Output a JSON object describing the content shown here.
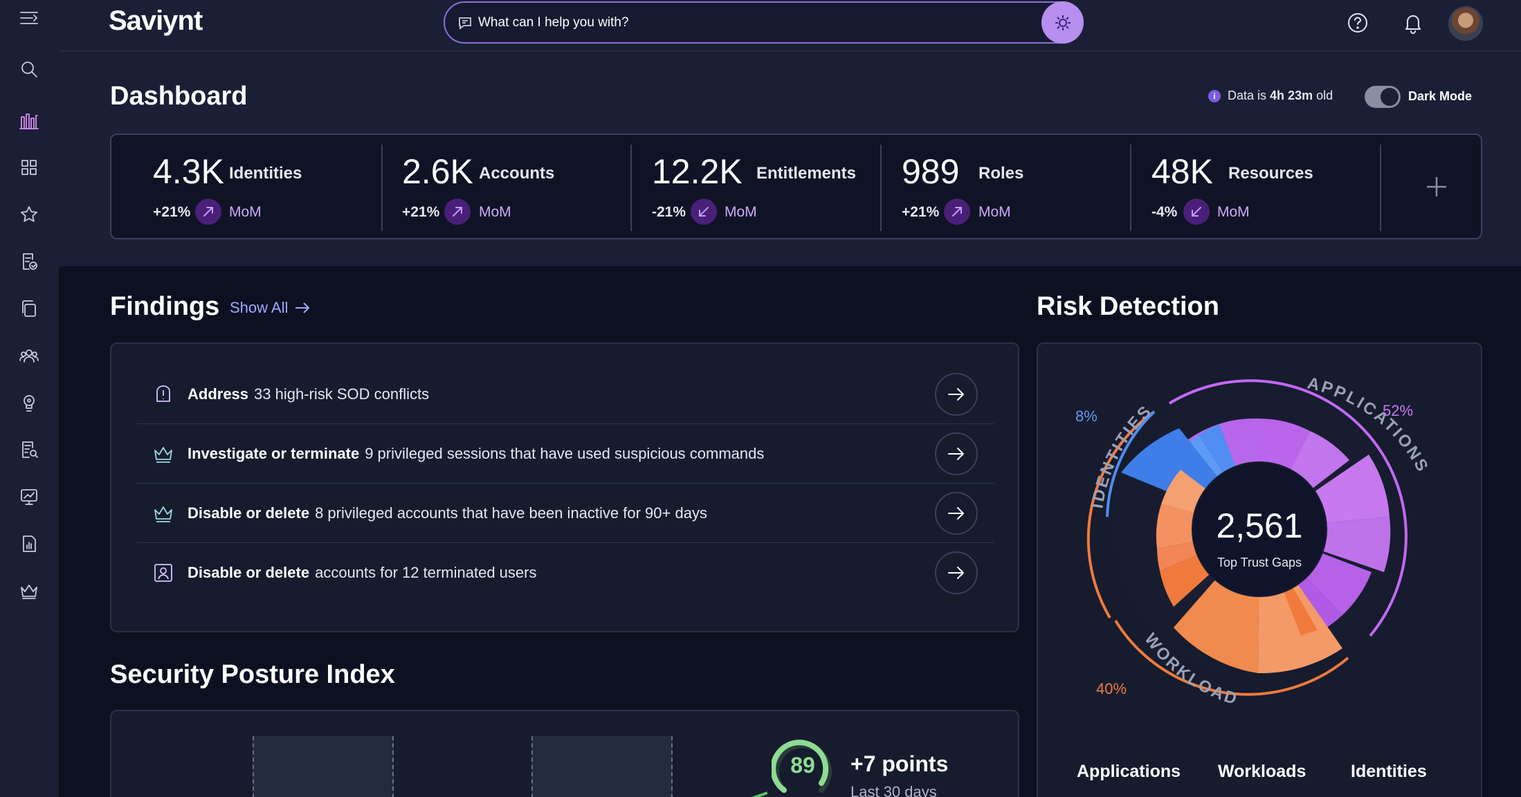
{
  "app": {
    "brand": "Saviynt",
    "search_placeholder": "What can I help you with?"
  },
  "header": {
    "title": "Dashboard",
    "data_age_prefix": "Data is",
    "data_age_value": "4h 23m",
    "data_age_suffix": "old",
    "dark_mode_label": "Dark Mode",
    "dark_mode_on": true
  },
  "stats": [
    {
      "value": "4.3K",
      "label": "Identities",
      "change": "+21%",
      "direction": "up",
      "period": "MoM"
    },
    {
      "value": "2.6K",
      "label": "Accounts",
      "change": "+21%",
      "direction": "up",
      "period": "MoM"
    },
    {
      "value": "12.2K",
      "label": "Entitlements",
      "change": "-21%",
      "direction": "down",
      "period": "MoM"
    },
    {
      "value": "989",
      "label": "Roles",
      "change": "+21%",
      "direction": "up",
      "period": "MoM"
    },
    {
      "value": "48K",
      "label": "Resources",
      "change": "-4%",
      "direction": "down",
      "period": "MoM"
    }
  ],
  "findings": {
    "title": "Findings",
    "show_all": "Show All",
    "items": [
      {
        "icon": "alert-icon",
        "action": "Address",
        "text": "33 high-risk SOD conflicts"
      },
      {
        "icon": "crown-icon",
        "action": "Investigate or terminate",
        "text": "9 privileged sessions that have used suspicious commands"
      },
      {
        "icon": "crown-icon",
        "action": "Disable or delete",
        "text": "8 privileged accounts that have been inactive for 90+ days"
      },
      {
        "icon": "user-badge-icon",
        "action": "Disable or delete",
        "text": "accounts for 12 terminated users"
      }
    ]
  },
  "posture": {
    "title": "Security Posture Index",
    "score": "89",
    "points": "+7 points",
    "period": "Last 30 days"
  },
  "risk": {
    "title": "Risk Detection",
    "total": "2,561",
    "total_label": "Top Trust Gaps",
    "segments": [
      {
        "name": "IDENTITIES",
        "percent": "8%",
        "color": "#4f8df0"
      },
      {
        "name": "APPLICATIONS",
        "percent": "52%",
        "color": "#c368f5"
      },
      {
        "name": "WORKLOADS",
        "percent": "40%",
        "color": "#f07a3c"
      }
    ],
    "legend": [
      "Applications",
      "Workloads",
      "Identities"
    ]
  },
  "sidebar_icons": [
    "menu-icon",
    "search-icon",
    "analytics-icon",
    "grid-icon",
    "star-icon",
    "certification-icon",
    "copy-icon",
    "users-icon",
    "lightbulb-icon",
    "report-search-icon",
    "monitor-chart-icon",
    "report-icon",
    "crown-icon"
  ]
}
